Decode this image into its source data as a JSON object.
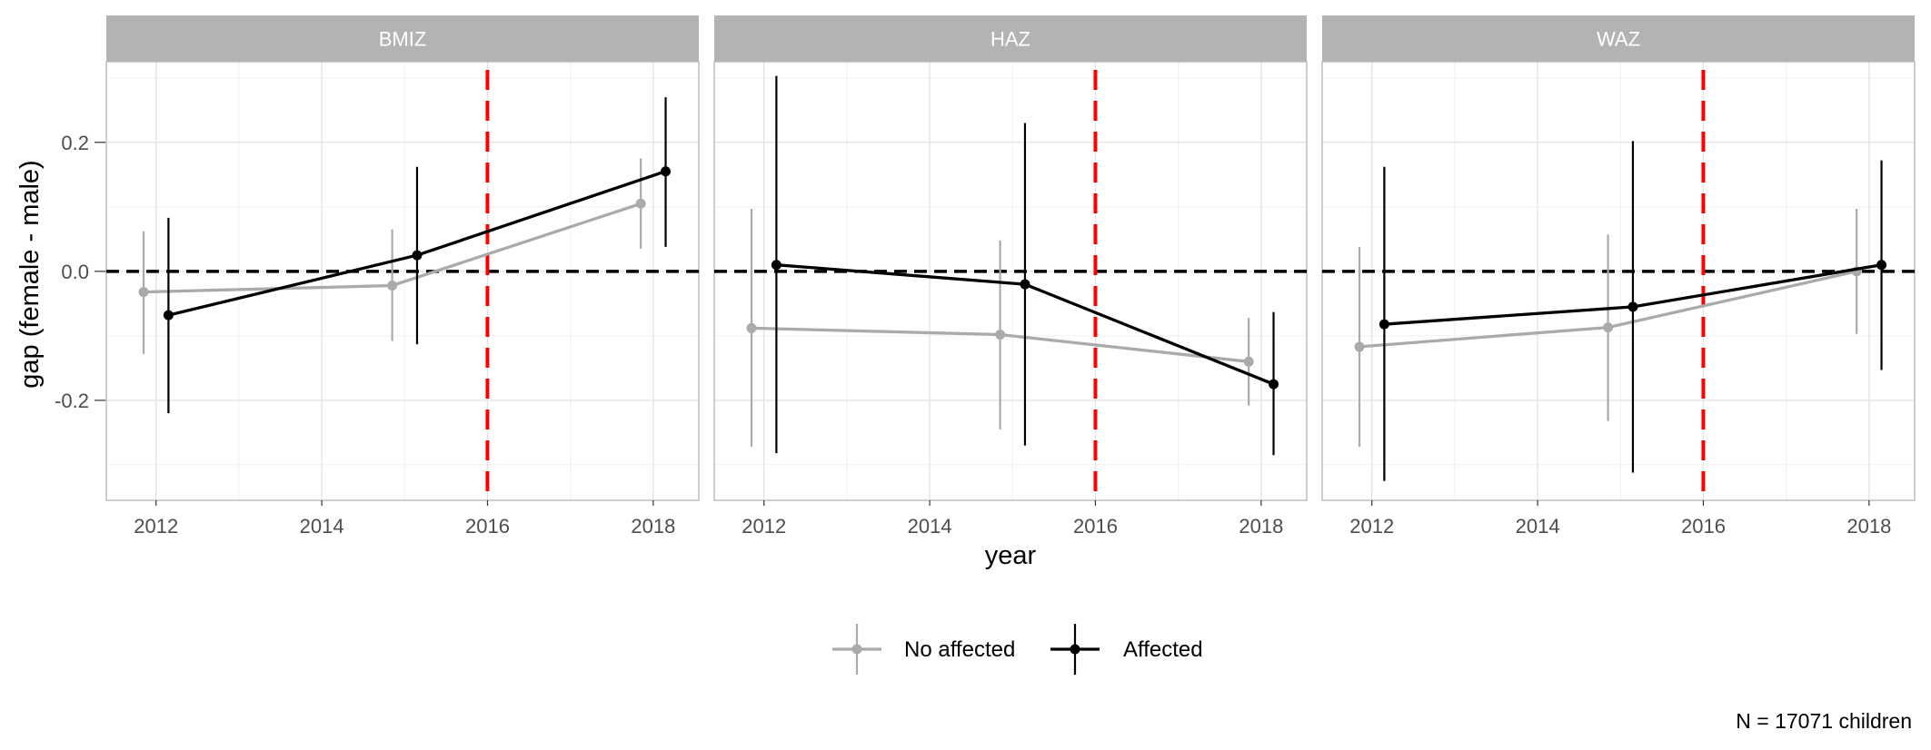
{
  "chart_data": {
    "type": "line",
    "facet_variable": "measure",
    "panels": [
      "BMIZ",
      "HAZ",
      "WAZ"
    ],
    "xlabel": "year",
    "ylabel": "gap (female - male)",
    "x_ticks": [
      2012,
      2014,
      2016,
      2018
    ],
    "y_ticks": [
      -0.2,
      0.0,
      0.2
    ],
    "y_tick_labels": [
      "-0.2",
      "0.0",
      "0.2"
    ],
    "xlim": [
      2011.4,
      2018.55
    ],
    "ylim": [
      -0.355,
      0.325
    ],
    "grid": true,
    "reference_lines": {
      "horizontal": {
        "y": 0.0,
        "style": "dashed",
        "color": "#000000"
      },
      "vertical": {
        "x": 2016,
        "style": "dashed",
        "color": "#ff0000"
      }
    },
    "series": [
      {
        "name": "No affected",
        "color": "#aaaaaa",
        "points": {
          "BMIZ": [
            {
              "x": 2011.85,
              "y": -0.032,
              "lo": -0.128,
              "hi": 0.062
            },
            {
              "x": 2014.85,
              "y": -0.022,
              "lo": -0.108,
              "hi": 0.065
            },
            {
              "x": 2017.85,
              "y": 0.105,
              "lo": 0.035,
              "hi": 0.175
            }
          ],
          "HAZ": [
            {
              "x": 2011.85,
              "y": -0.088,
              "lo": -0.272,
              "hi": 0.097
            },
            {
              "x": 2014.85,
              "y": -0.098,
              "lo": -0.245,
              "hi": 0.048
            },
            {
              "x": 2017.85,
              "y": -0.14,
              "lo": -0.208,
              "hi": -0.072
            }
          ],
          "WAZ": [
            {
              "x": 2011.85,
              "y": -0.117,
              "lo": -0.272,
              "hi": 0.038
            },
            {
              "x": 2014.85,
              "y": -0.087,
              "lo": -0.232,
              "hi": 0.057
            },
            {
              "x": 2017.85,
              "y": 0.0,
              "lo": -0.097,
              "hi": 0.097
            }
          ]
        }
      },
      {
        "name": "Affected",
        "color": "#000000",
        "points": {
          "BMIZ": [
            {
              "x": 2012.15,
              "y": -0.068,
              "lo": -0.22,
              "hi": 0.083
            },
            {
              "x": 2015.15,
              "y": 0.025,
              "lo": -0.113,
              "hi": 0.162
            },
            {
              "x": 2018.15,
              "y": 0.155,
              "lo": 0.038,
              "hi": 0.27
            }
          ],
          "HAZ": [
            {
              "x": 2012.15,
              "y": 0.01,
              "lo": -0.282,
              "hi": 0.303
            },
            {
              "x": 2015.15,
              "y": -0.02,
              "lo": -0.27,
              "hi": 0.23
            },
            {
              "x": 2018.15,
              "y": -0.175,
              "lo": -0.285,
              "hi": -0.063
            }
          ],
          "WAZ": [
            {
              "x": 2012.15,
              "y": -0.082,
              "lo": -0.325,
              "hi": 0.162
            },
            {
              "x": 2015.15,
              "y": -0.055,
              "lo": -0.312,
              "hi": 0.202
            },
            {
              "x": 2018.15,
              "y": 0.01,
              "lo": -0.153,
              "hi": 0.172
            }
          ]
        }
      }
    ],
    "legend": {
      "position": "bottom",
      "entries": [
        "No affected",
        "Affected"
      ]
    },
    "caption": "N = 17071 children"
  }
}
